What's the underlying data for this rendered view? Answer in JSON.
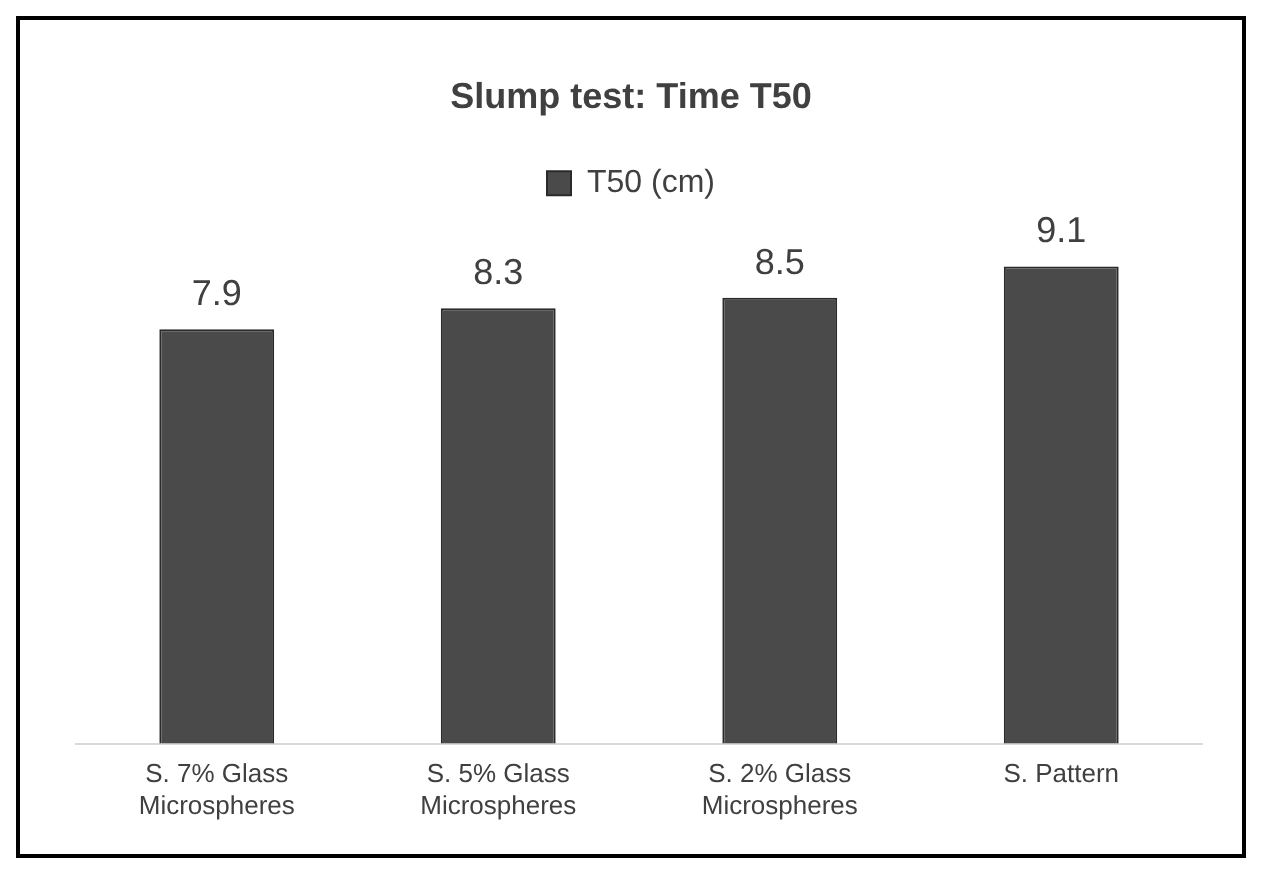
{
  "chart_data": {
    "type": "bar",
    "title": "Slump test: Time T50",
    "categories": [
      "S. 7% Glass Microspheres",
      "S. 5% Glass Microspheres",
      "S. 2% Glass Microspheres",
      "S. Pattern"
    ],
    "series": [
      {
        "name": "T50 (cm)",
        "color": "#4a4a4a",
        "values": [
          7.9,
          8.3,
          8.5,
          9.1
        ]
      }
    ],
    "tick_labels": "x",
    "data_labels": true,
    "legend": "top",
    "grid": false
  }
}
